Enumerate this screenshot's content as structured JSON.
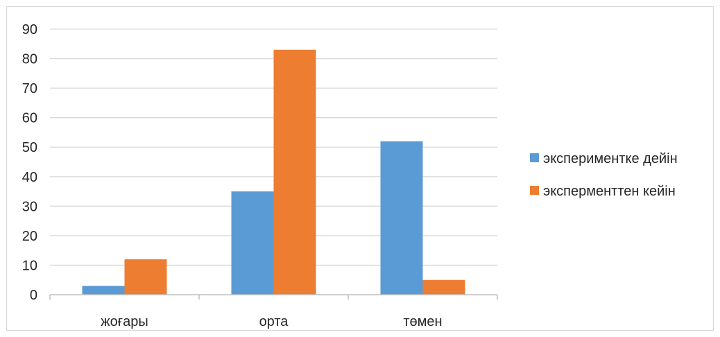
{
  "chart_data": {
    "type": "bar",
    "title": "",
    "xlabel": "",
    "ylabel": "",
    "categories": [
      "жоғары",
      "орта",
      "төмен"
    ],
    "series": [
      {
        "name": "экспериментке дейін",
        "color": "#5b9bd5",
        "values": [
          3,
          35,
          52
        ]
      },
      {
        "name": "эксперменттен кейін",
        "color": "#ed7d31",
        "values": [
          12,
          83,
          5
        ]
      }
    ],
    "ylim": [
      0,
      90
    ],
    "yticks": [
      "0",
      "10",
      "20",
      "30",
      "40",
      "50",
      "60",
      "70",
      "80",
      "90"
    ],
    "grid": true,
    "legend_position": "right"
  }
}
